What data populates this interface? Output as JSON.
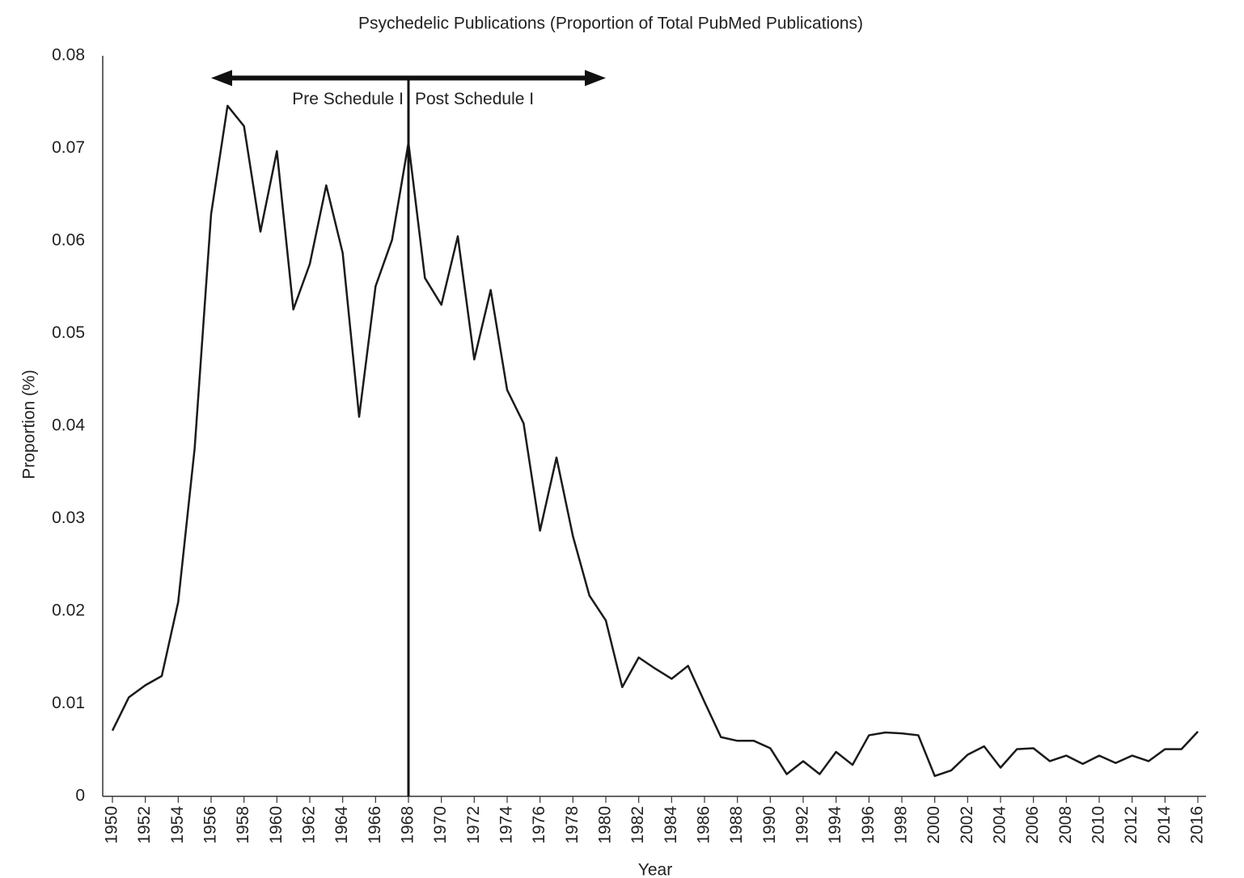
{
  "chart_data": {
    "type": "line",
    "title": "Psychedelic Publications (Proportion of Total PubMed Publications)",
    "xlabel": "Year",
    "ylabel": "Proportion (%)",
    "x": [
      1950,
      1951,
      1952,
      1953,
      1954,
      1955,
      1956,
      1957,
      1958,
      1959,
      1960,
      1961,
      1962,
      1963,
      1964,
      1965,
      1966,
      1967,
      1968,
      1969,
      1970,
      1971,
      1972,
      1973,
      1974,
      1975,
      1976,
      1977,
      1978,
      1979,
      1980,
      1981,
      1982,
      1983,
      1984,
      1985,
      1986,
      1987,
      1988,
      1989,
      1990,
      1991,
      1992,
      1993,
      1994,
      1995,
      1996,
      1997,
      1998,
      1999,
      2000,
      2001,
      2002,
      2003,
      2004,
      2005,
      2006,
      2007,
      2008,
      2009,
      2010,
      2011,
      2012,
      2013,
      2014,
      2015,
      2016
    ],
    "values": [
      0.0071,
      0.0107,
      0.012,
      0.013,
      0.021,
      0.0376,
      0.0629,
      0.0746,
      0.0724,
      0.061,
      0.0697,
      0.0526,
      0.0575,
      0.066,
      0.0587,
      0.041,
      0.0551,
      0.0601,
      0.0706,
      0.056,
      0.0531,
      0.0605,
      0.0472,
      0.0547,
      0.0439,
      0.0403,
      0.0287,
      0.0366,
      0.0281,
      0.0217,
      0.019,
      0.0118,
      0.015,
      0.0138,
      0.0127,
      0.0141,
      0.0102,
      0.0064,
      0.006,
      0.006,
      0.0052,
      0.0024,
      0.0038,
      0.0024,
      0.0048,
      0.0034,
      0.0066,
      0.0069,
      0.0068,
      0.0066,
      0.0022,
      0.0028,
      0.0045,
      0.0054,
      0.0031,
      0.0051,
      0.0052,
      0.0038,
      0.0044,
      0.0035,
      0.0044,
      0.0036,
      0.0044,
      0.0038,
      0.0051,
      0.0051,
      0.007
    ],
    "color": "#1a1a1a",
    "xlim": [
      1950,
      2016
    ],
    "xticks": [
      1950,
      1952,
      1954,
      1956,
      1958,
      1960,
      1962,
      1964,
      1966,
      1968,
      1970,
      1972,
      1974,
      1976,
      1978,
      1980,
      1982,
      1984,
      1986,
      1988,
      1990,
      1992,
      1994,
      1996,
      1998,
      2000,
      2002,
      2004,
      2006,
      2008,
      2010,
      2012,
      2014,
      2016
    ],
    "ylim": [
      0,
      0.08
    ],
    "yticks": [
      0,
      0.01,
      0.02,
      0.03,
      0.04,
      0.05,
      0.06,
      0.07,
      0.08
    ],
    "grid": false,
    "annotations": {
      "vline": 1968,
      "arrow": {
        "from": 1956,
        "to": 1980,
        "y": 0.0776
      },
      "left_label": "Pre Schedule I",
      "right_label": "Post Schedule I"
    }
  }
}
